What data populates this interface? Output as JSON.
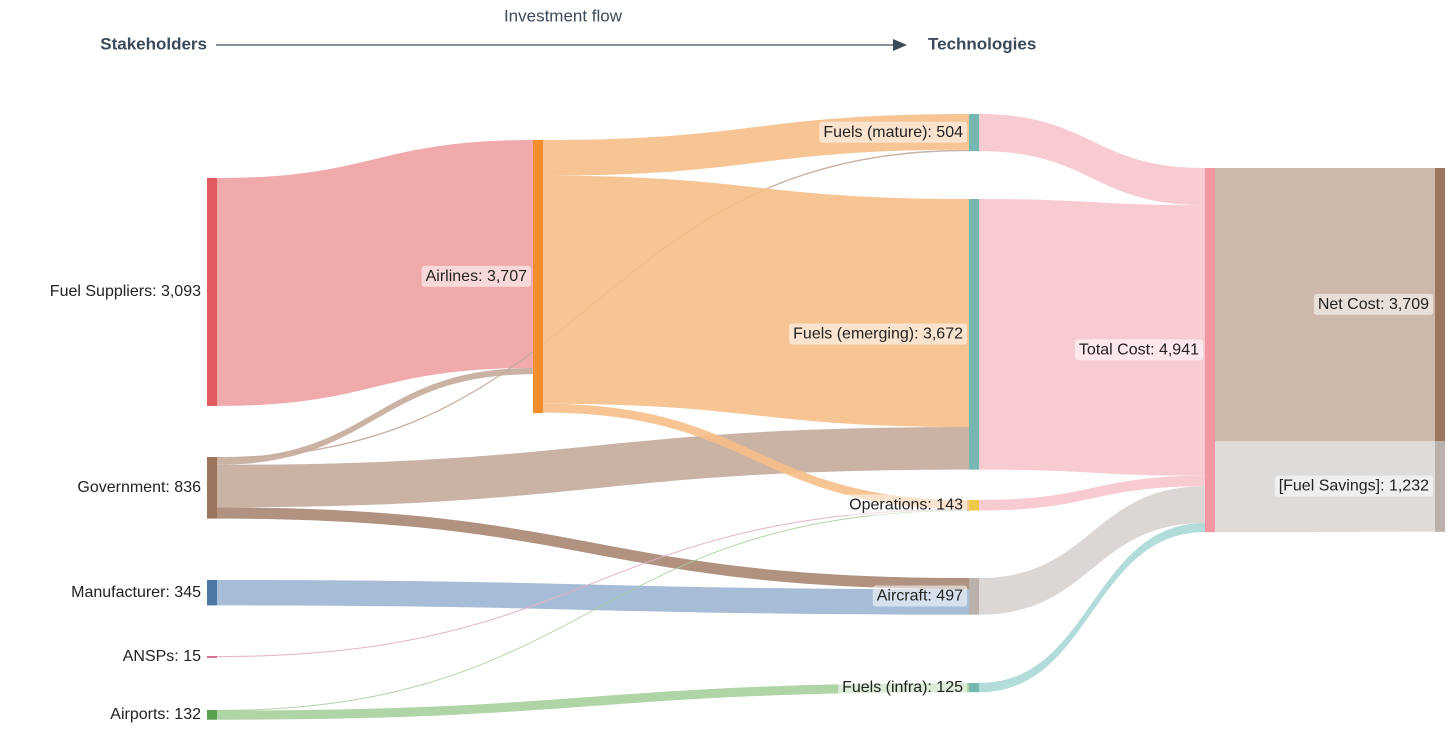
{
  "chart_data": {
    "type": "sankey",
    "title": "Investment flow",
    "source_heading": "Stakeholders",
    "target_heading": "Technologies",
    "nodes": [
      {
        "label": "Fuel Suppliers: 3,093",
        "value": 3093,
        "color": "#e05a5f"
      },
      {
        "label": "Government: 836",
        "value": 836,
        "color": "#9c755f"
      },
      {
        "label": "Manufacturer: 345",
        "value": 345,
        "color": "#4e79a7"
      },
      {
        "label": "ANSPs: 15",
        "value": 15,
        "color": "#d37295"
      },
      {
        "label": "Airports: 132",
        "value": 132,
        "color": "#59a14f"
      },
      {
        "label": "Airlines: 3,707",
        "value": 3707,
        "color": "#f28e2b"
      },
      {
        "label": "Fuels (mature): 504",
        "value": 504,
        "color": "#76b7b2"
      },
      {
        "label": "Fuels (emerging): 3,672",
        "value": 3672,
        "color": "#76b7b2"
      },
      {
        "label": "Operations: 143",
        "value": 143,
        "color": "#edc948"
      },
      {
        "label": "Aircraft: 497",
        "value": 497,
        "color": "#bab0ac"
      },
      {
        "label": "Fuels (infra): 125",
        "value": 125,
        "color": "#76b7b2"
      },
      {
        "label": "Total Cost: 4,941",
        "value": 4941,
        "color": "#f497a3"
      },
      {
        "label": "Net Cost: 3,709",
        "value": 3709,
        "color": "#9c755f"
      },
      {
        "label": "[Fuel Savings]: 1,232",
        "value": 1232,
        "color": "#bab0ac"
      }
    ],
    "links": [
      {
        "source": 0,
        "target": 5,
        "value": 3093,
        "color": "#eea1a3"
      },
      {
        "source": 1,
        "target": 6,
        "value": 20,
        "color": "#c4ab9b"
      },
      {
        "source": 1,
        "target": 5,
        "value": 86,
        "color": "#c4ab9b"
      },
      {
        "source": 1,
        "target": 7,
        "value": 578,
        "color": "#c4ab9b"
      },
      {
        "source": 1,
        "target": 9,
        "value": 152,
        "color": "#a88672"
      },
      {
        "source": 2,
        "target": 9,
        "value": 345,
        "color": "#9db5d3"
      },
      {
        "source": 3,
        "target": 8,
        "value": 15,
        "color": "#e3b0c4"
      },
      {
        "source": 4,
        "target": 8,
        "value": 7,
        "color": "#a6cf9c"
      },
      {
        "source": 4,
        "target": 10,
        "value": 125,
        "color": "#a6cf9c"
      },
      {
        "source": 5,
        "target": 6,
        "value": 484,
        "color": "#f6be88"
      },
      {
        "source": 5,
        "target": 7,
        "value": 3094,
        "color": "#f6be88"
      },
      {
        "source": 5,
        "target": 8,
        "value": 121,
        "color": "#f6be88"
      },
      {
        "source": 6,
        "target": 11,
        "value": 504,
        "color": "#f7c5cd"
      },
      {
        "source": 7,
        "target": 11,
        "value": 3672,
        "color": "#f7c5cd"
      },
      {
        "source": 8,
        "target": 11,
        "value": 143,
        "color": "#f7c5cd"
      },
      {
        "source": 9,
        "target": 11,
        "value": 497,
        "color": "#d8d2cf"
      },
      {
        "source": 10,
        "target": 11,
        "value": 125,
        "color": "#a9d8d6"
      },
      {
        "source": 11,
        "target": 12,
        "value": 3709,
        "color": "#c6b1a3"
      },
      {
        "source": 11,
        "target": 13,
        "value": 1232,
        "color": "#dcd7d4"
      }
    ]
  }
}
